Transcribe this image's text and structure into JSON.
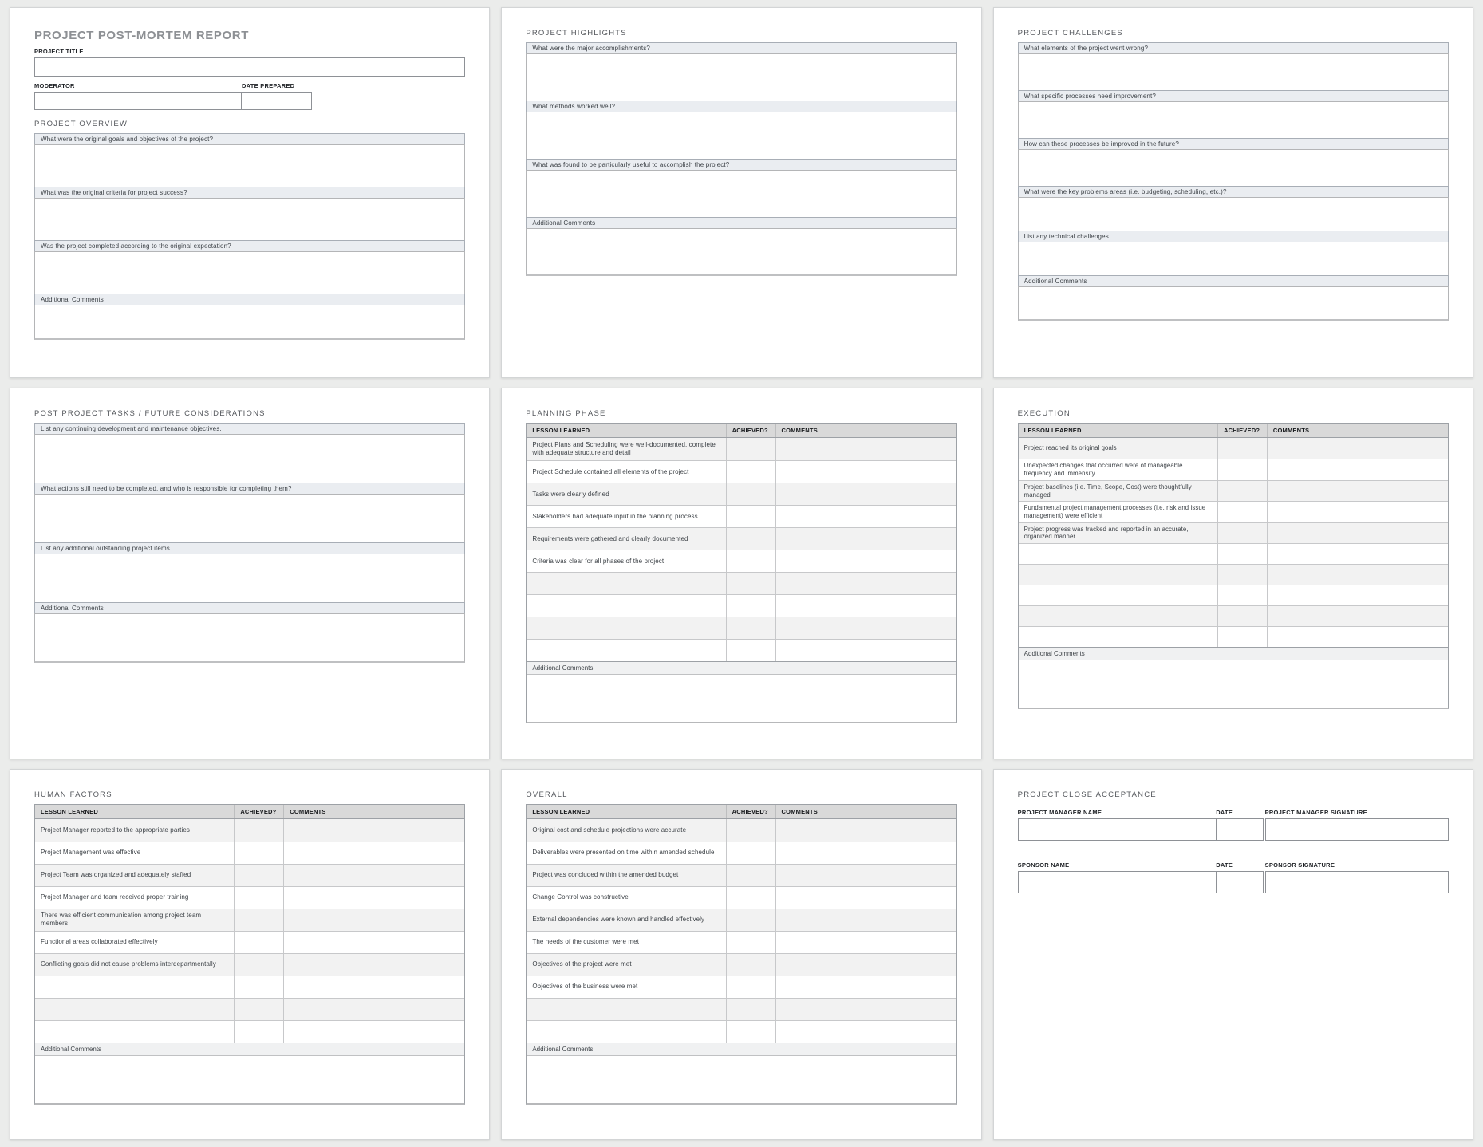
{
  "report": {
    "title": "PROJECT POST-MORTEM REPORT",
    "project_title_label": "PROJECT TITLE",
    "moderator_label": "MODERATOR",
    "date_prepared_label": "DATE PREPARED"
  },
  "overview": {
    "title": "PROJECT OVERVIEW",
    "q1": "What were the original goals and objectives of the project?",
    "q2": "What was the original criteria for project success?",
    "q3": "Was the project completed according to the original expectation?",
    "comments_label": "Additional Comments"
  },
  "highlights": {
    "title": "PROJECT HIGHLIGHTS",
    "q1": "What were the major accomplishments?",
    "q2": "What methods worked well?",
    "q3": "What was found to be particularly useful to accomplish the project?",
    "comments_label": "Additional Comments"
  },
  "challenges": {
    "title": "PROJECT CHALLENGES",
    "q1": "What elements of the project went wrong?",
    "q2": "What specific processes need improvement?",
    "q3": "How can these processes be improved in the future?",
    "q4": "What were the key problems areas (i.e. budgeting, scheduling, etc.)?",
    "q5": "List any technical challenges.",
    "comments_label": "Additional Comments"
  },
  "post_tasks": {
    "title": "POST PROJECT TASKS / FUTURE CONSIDERATIONS",
    "q1": "List any continuing development and maintenance objectives.",
    "q2": "What actions still need to be completed, and who is responsible for completing them?",
    "q3": "List any additional outstanding project items.",
    "comments_label": "Additional Comments"
  },
  "planning": {
    "title": "PLANNING PHASE",
    "col_lesson": "LESSON LEARNED",
    "col_achieved": "ACHIEVED?",
    "col_comments": "COMMENTS",
    "rows": [
      "Project Plans and Scheduling were well-documented, complete with adequate structure and detail",
      "Project Schedule contained all elements of the project",
      "Tasks were clearly defined",
      "Stakeholders had adequate input in the planning process",
      "Requirements were gathered and clearly documented",
      "Criteria was clear for all phases of the project",
      "",
      "",
      "",
      ""
    ],
    "comments_label": "Additional Comments"
  },
  "execution": {
    "title": "EXECUTION",
    "col_lesson": "LESSON LEARNED",
    "col_achieved": "ACHIEVED?",
    "col_comments": "COMMENTS",
    "rows": [
      "Project reached its original goals",
      "Unexpected changes that occurred were of manageable frequency and immensity",
      "Project baselines (i.e. Time, Scope, Cost) were thoughtfully managed",
      "Fundamental project management processes (i.e. risk and issue management) were efficient",
      "Project progress was tracked and reported in an accurate, organized manner",
      "",
      "",
      "",
      "",
      ""
    ],
    "comments_label": "Additional Comments"
  },
  "human_factors": {
    "title": "HUMAN FACTORS",
    "col_lesson": "LESSON LEARNED",
    "col_achieved": "ACHIEVED?",
    "col_comments": "COMMENTS",
    "rows": [
      "Project Manager reported to the appropriate parties",
      "Project Management was effective",
      "Project Team was organized and adequately staffed",
      "Project Manager and team received proper training",
      "There was efficient communication among project team members",
      "Functional areas collaborated effectively",
      "Conflicting goals did not cause problems interdepartmentally",
      "",
      "",
      ""
    ],
    "comments_label": "Additional Comments"
  },
  "overall": {
    "title": "OVERALL",
    "col_lesson": "LESSON LEARNED",
    "col_achieved": "ACHIEVED?",
    "col_comments": "COMMENTS",
    "rows": [
      "Original cost and schedule projections were accurate",
      "Deliverables were presented on time within amended schedule",
      "Project was concluded within the amended budget",
      "Change Control was constructive",
      "External dependencies were known and handled effectively",
      "The needs of the customer were met",
      "Objectives of the project were met",
      "Objectives of the business were met",
      "",
      ""
    ],
    "comments_label": "Additional Comments"
  },
  "close_acceptance": {
    "title": "PROJECT CLOSE ACCEPTANCE",
    "pm_name_label": "PROJECT MANAGER NAME",
    "pm_date_label": "DATE",
    "pm_signature_label": "PROJECT MANAGER SIGNATURE",
    "sponsor_name_label": "SPONSOR NAME",
    "sponsor_date_label": "DATE",
    "sponsor_signature_label": "SPONSOR SIGNATURE"
  },
  "colors": {
    "page_background": "#ebeceb",
    "question_header_bg": "#eaedf1",
    "table_header_bg": "#d9d9d9",
    "row_alternate_bg": "#f2f2f2"
  }
}
